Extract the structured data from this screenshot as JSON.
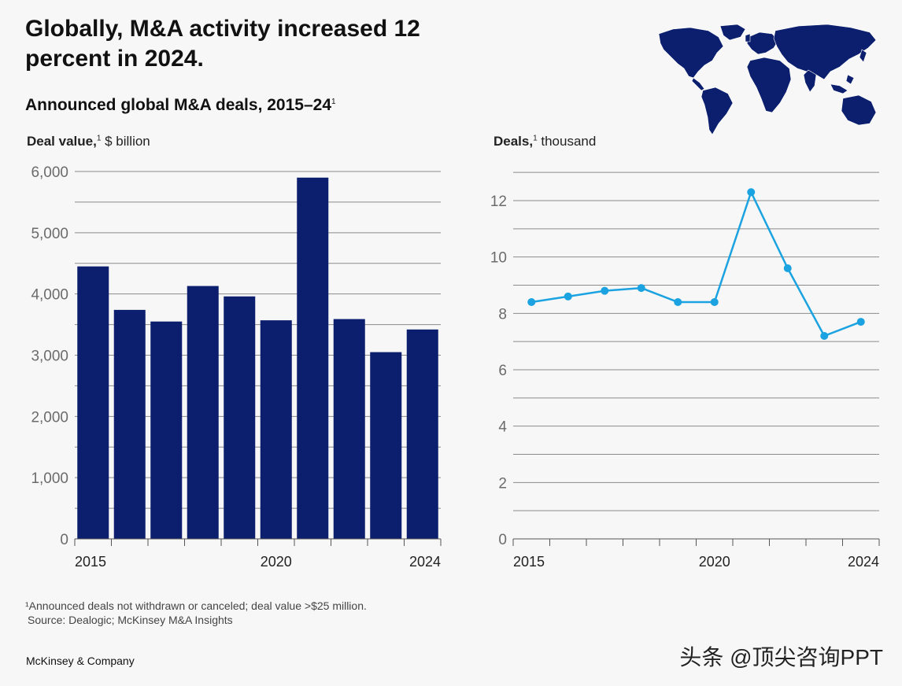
{
  "headline": "Globally, M&A activity increased 12 percent in 2024.",
  "subtitle": "Announced global M&A deals, 2015–24",
  "subtitle_sup": "1",
  "left_axis_title": {
    "bold": "Deal value,",
    "sup": "1",
    "rest": " $ billion"
  },
  "right_axis_title": {
    "bold": "Deals,",
    "sup": "1",
    "rest": " thousand"
  },
  "chart_data": [
    {
      "type": "bar",
      "title": "Deal value, $ billion",
      "categories": [
        "2015",
        "2016",
        "2017",
        "2018",
        "2019",
        "2020",
        "2021",
        "2022",
        "2023",
        "2024"
      ],
      "values": [
        4450,
        3740,
        3550,
        4130,
        3960,
        3570,
        5900,
        3590,
        3050,
        3420
      ],
      "ylim": [
        0,
        6000
      ],
      "yticks": [
        0,
        1000,
        2000,
        3000,
        4000,
        5000,
        6000
      ],
      "ytick_labels": [
        "0",
        "1,000",
        "2,000",
        "3,000",
        "4,000",
        "5,000",
        "6,000"
      ],
      "xtick_labels": [
        {
          "index": 0,
          "label": "2015"
        },
        {
          "index": 5,
          "label": "2020"
        },
        {
          "index": 9,
          "label": "2024"
        }
      ],
      "color": "#0b1f6e"
    },
    {
      "type": "line",
      "title": "Deals, thousand",
      "categories": [
        "2015",
        "2016",
        "2017",
        "2018",
        "2019",
        "2020",
        "2021",
        "2022",
        "2023",
        "2024"
      ],
      "values": [
        8.4,
        8.6,
        8.8,
        8.9,
        8.4,
        8.4,
        12.3,
        9.6,
        7.2,
        7.7
      ],
      "ylim": [
        0,
        13
      ],
      "yticks": [
        0,
        2,
        4,
        6,
        8,
        10,
        12
      ],
      "ytick_labels": [
        "0",
        "2",
        "4",
        "6",
        "8",
        "10",
        "12"
      ],
      "xtick_labels": [
        {
          "index": 0,
          "label": "2015"
        },
        {
          "index": 5,
          "label": "2020"
        },
        {
          "index": 9,
          "label": "2024"
        }
      ],
      "color": "#1aa3e0"
    }
  ],
  "footnote": "¹Announced deals not withdrawn or canceled; deal value >$25 million.",
  "source": "Source: Dealogic; McKinsey M&A Insights",
  "brand": "McKinsey & Company",
  "watermark": "头条 @顶尖咨询PPT"
}
